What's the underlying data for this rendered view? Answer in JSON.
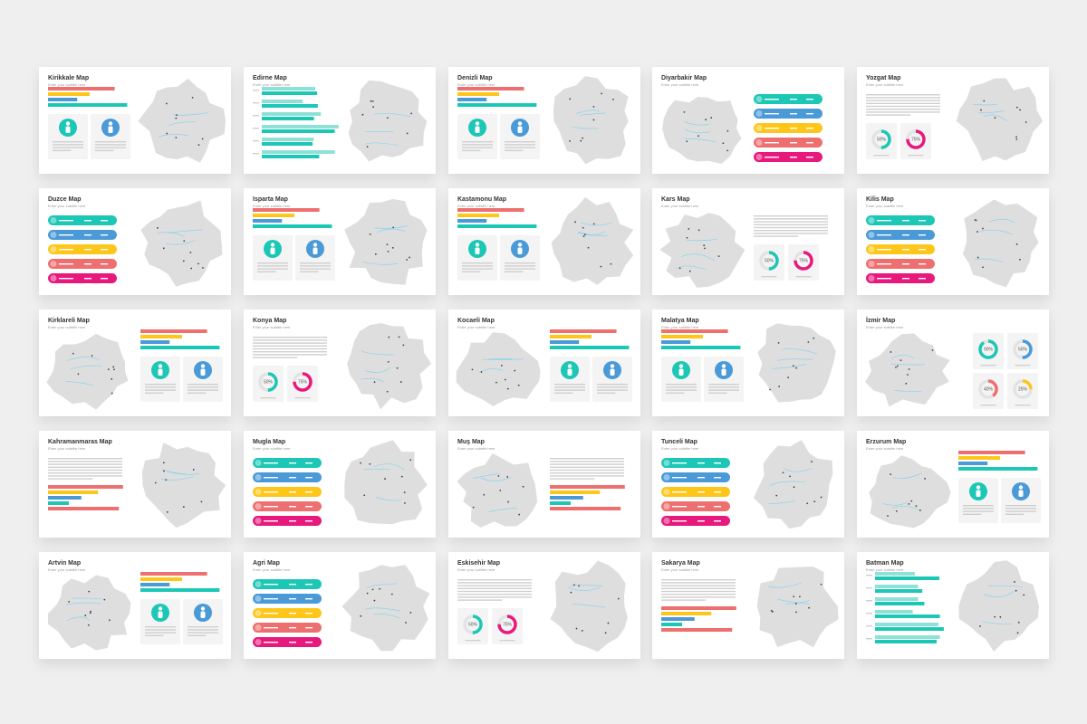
{
  "slides": [
    {
      "title": "Kirikkale Map",
      "subtitle": "Enter your subtitle here",
      "layout": "bars-people",
      "map_side": "right"
    },
    {
      "title": "Edirne Map",
      "subtitle": "Enter your subtitle here",
      "layout": "hbars",
      "map_side": "right"
    },
    {
      "title": "Denizli Map",
      "subtitle": "Enter your subtitle here",
      "layout": "bars-people",
      "map_side": "right"
    },
    {
      "title": "Diyarbakir Map",
      "subtitle": "Enter your subtitle here",
      "layout": "pills",
      "map_side": "left"
    },
    {
      "title": "Yozgat Map",
      "subtitle": "Enter your subtitle here",
      "layout": "text-donuts",
      "map_side": "right",
      "donuts": [
        "50%",
        "75%"
      ]
    },
    {
      "title": "Duzce Map",
      "subtitle": "Enter your subtitle here",
      "layout": "pills",
      "map_side": "right"
    },
    {
      "title": "Isparta Map",
      "subtitle": "Enter your subtitle here",
      "layout": "bars-people",
      "map_side": "right"
    },
    {
      "title": "Kastamonu Map",
      "subtitle": "Enter your subtitle here",
      "layout": "bars-people",
      "map_side": "right"
    },
    {
      "title": "Kars Map",
      "subtitle": "Enter your subtitle here",
      "layout": "text-donuts",
      "map_side": "left",
      "donuts": [
        "50%",
        "75%"
      ]
    },
    {
      "title": "Kilis Map",
      "subtitle": "Enter your subtitle here",
      "layout": "pills",
      "map_side": "right"
    },
    {
      "title": "Kirklareli Map",
      "subtitle": "Enter your subtitle here",
      "layout": "bars-people",
      "map_side": "left"
    },
    {
      "title": "Konya Map",
      "subtitle": "Enter your subtitle here",
      "layout": "text-donuts",
      "map_side": "right",
      "donuts": [
        "50%",
        "75%"
      ]
    },
    {
      "title": "Kocaeli Map",
      "subtitle": "Enter your subtitle here",
      "layout": "bars-people",
      "map_side": "left"
    },
    {
      "title": "Malatya Map",
      "subtitle": "Enter your subtitle here",
      "layout": "bars-people",
      "map_side": "right"
    },
    {
      "title": "İzmir Map",
      "subtitle": "Enter your subtitle here",
      "layout": "donut-grid",
      "map_side": "left",
      "donuts": [
        "90%",
        "50%",
        "40%",
        "25%"
      ]
    },
    {
      "title": "Kahramanmaras Map",
      "subtitle": "Enter your subtitle here",
      "layout": "text-bars",
      "map_side": "right"
    },
    {
      "title": "Mugla Map",
      "subtitle": "Enter your subtitle here",
      "layout": "pills",
      "map_side": "right"
    },
    {
      "title": "Muş Map",
      "subtitle": "Enter your subtitle here",
      "layout": "text-bars",
      "map_side": "left"
    },
    {
      "title": "Tunceli Map",
      "subtitle": "Enter your subtitle here",
      "layout": "pills",
      "map_side": "right"
    },
    {
      "title": "Erzurum Map",
      "subtitle": "Enter your subtitle here",
      "layout": "bars-people",
      "map_side": "left"
    },
    {
      "title": "Artvin Map",
      "subtitle": "Enter your subtitle here",
      "layout": "bars-people",
      "map_side": "left"
    },
    {
      "title": "Agri Map",
      "subtitle": "Enter your subtitle here",
      "layout": "pills",
      "map_side": "right"
    },
    {
      "title": "Eskisehir Map",
      "subtitle": "Enter your subtitle here",
      "layout": "text-donuts",
      "map_side": "right",
      "donuts": [
        "50%",
        "75%"
      ]
    },
    {
      "title": "Sakarya Map",
      "subtitle": "Enter your subtitle here",
      "layout": "text-bars",
      "map_side": "right"
    },
    {
      "title": "Batman Map",
      "subtitle": "Enter your subtitle here",
      "layout": "hbars",
      "map_side": "right"
    }
  ]
}
